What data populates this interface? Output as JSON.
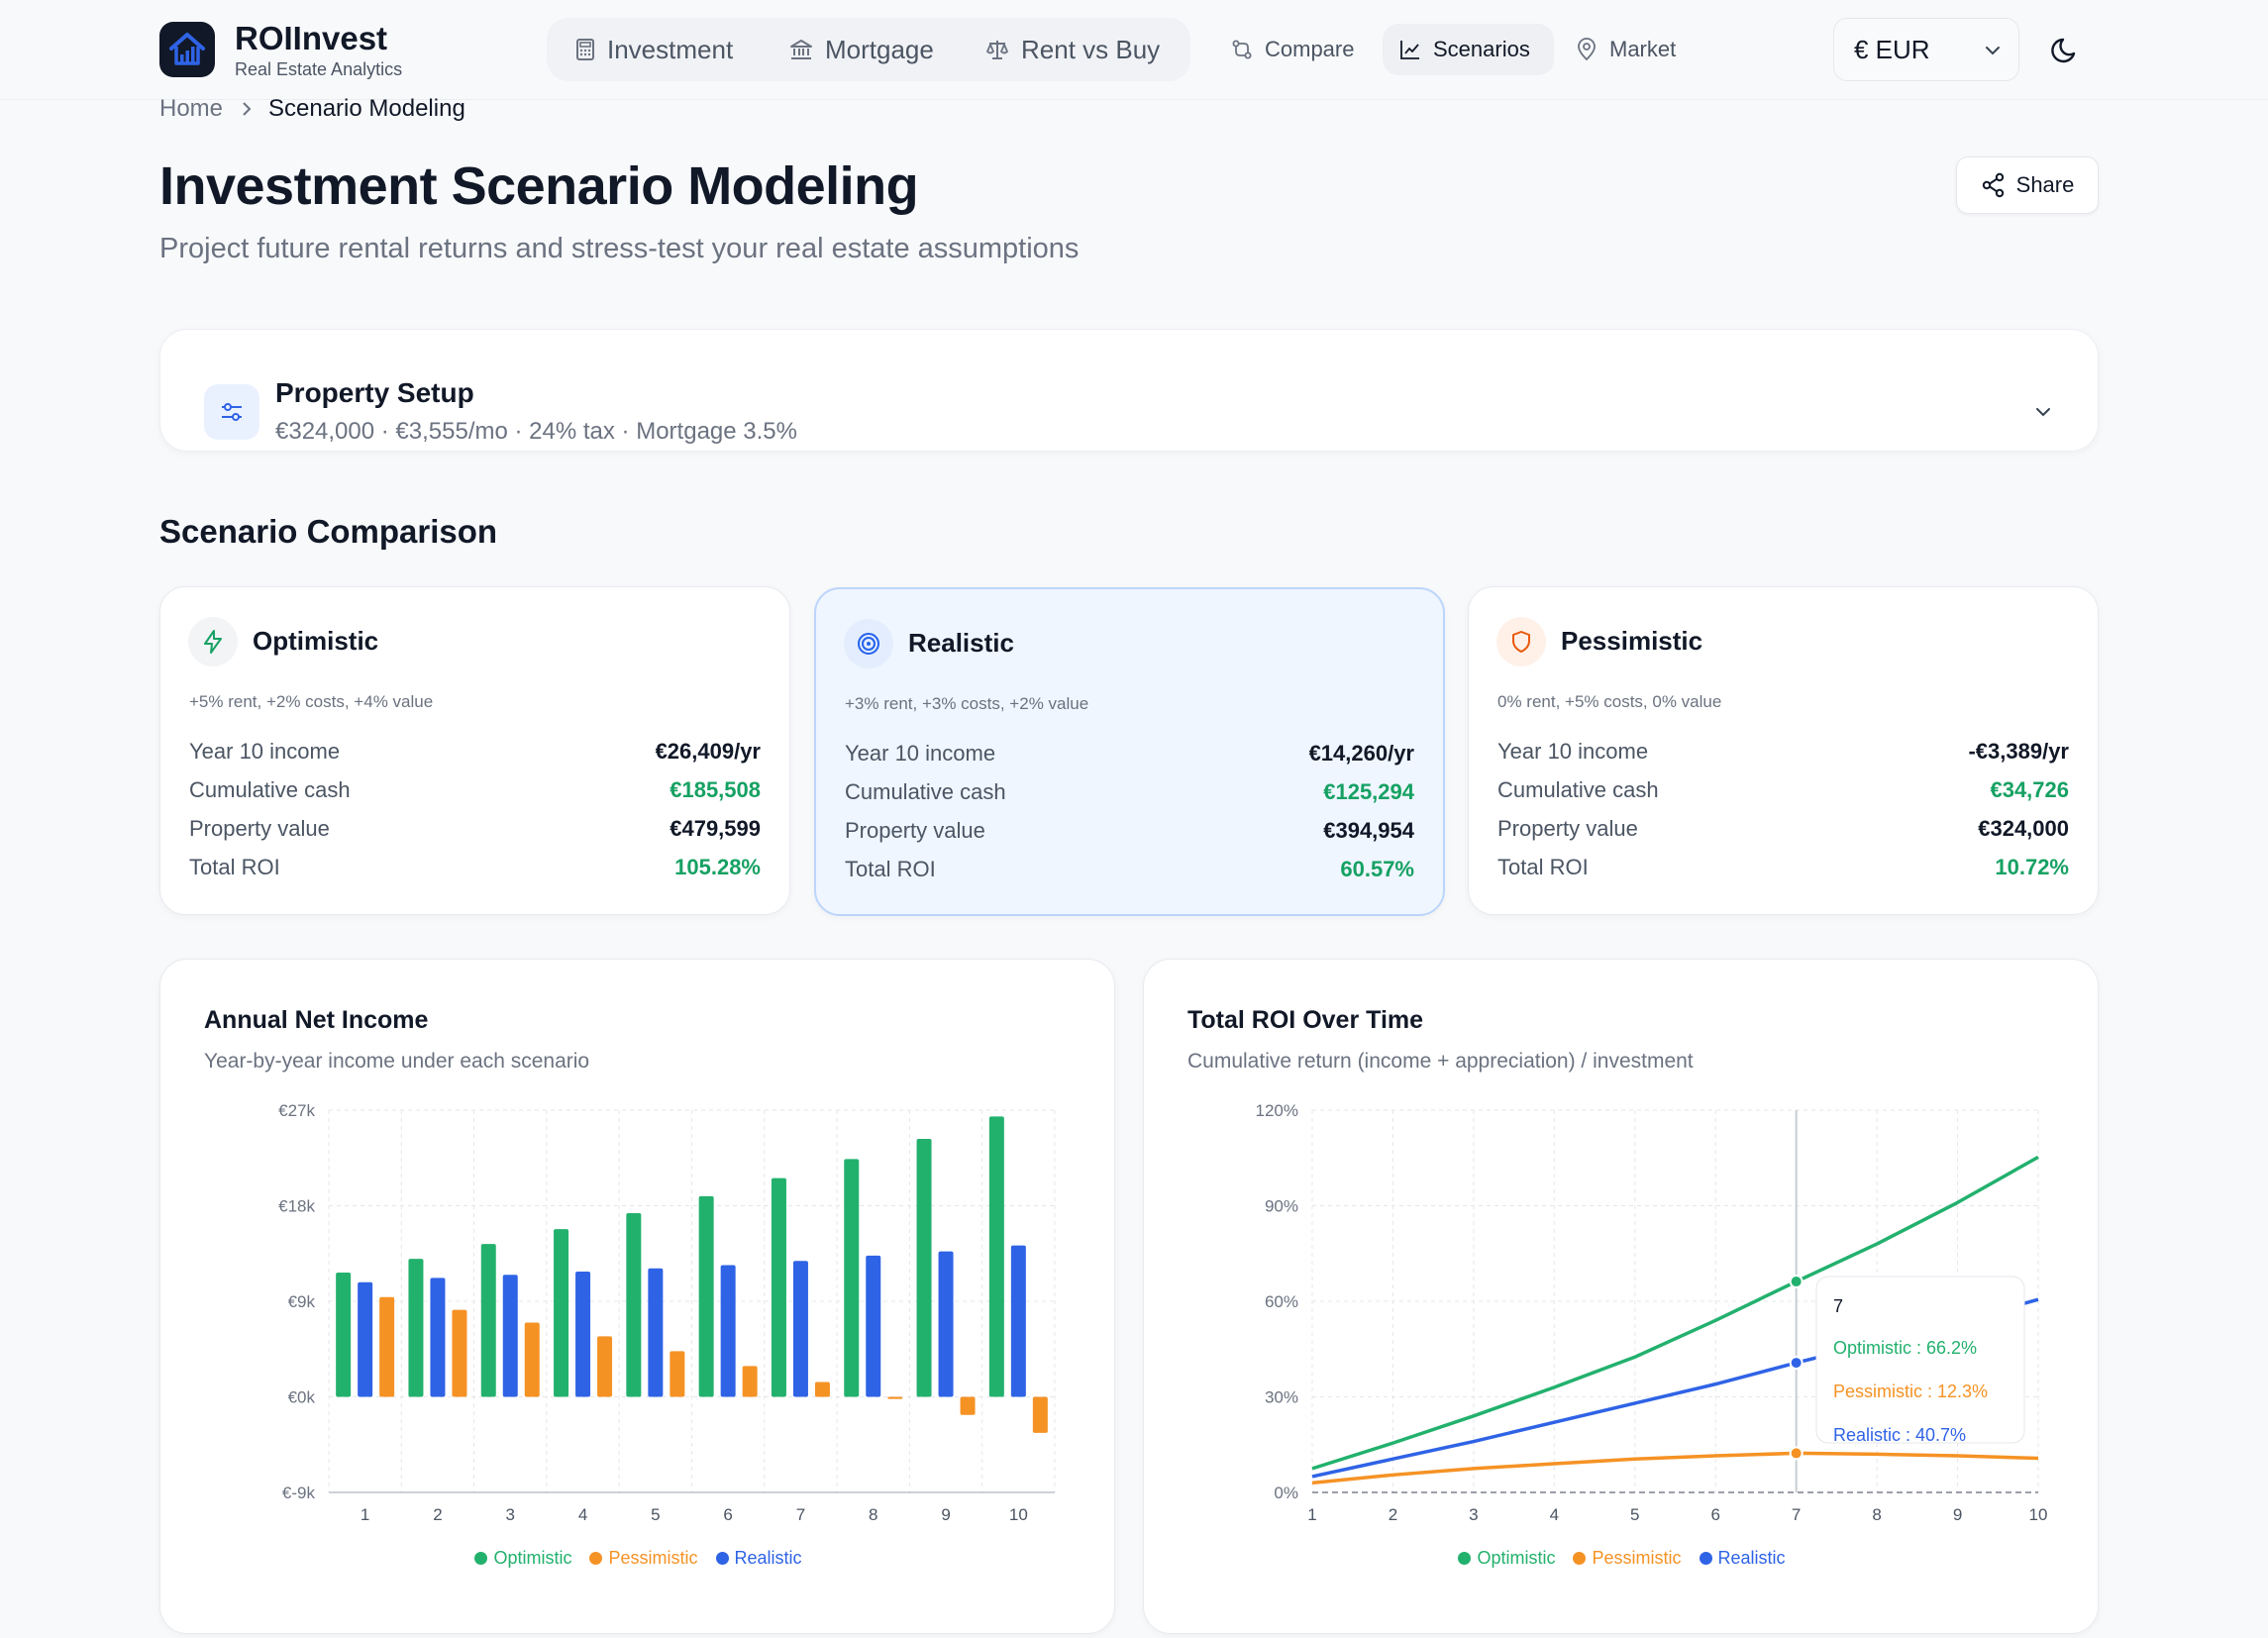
{
  "brand": {
    "name": "ROIInvest",
    "tagline": "Real Estate Analytics"
  },
  "nav": {
    "primary": [
      "Investment",
      "Mortgage",
      "Rent vs Buy"
    ],
    "secondary": [
      "Compare",
      "Scenarios",
      "Market"
    ],
    "active": "Scenarios"
  },
  "currency": {
    "selected": "€ EUR"
  },
  "breadcrumb": {
    "home": "Home",
    "current": "Scenario Modeling"
  },
  "page": {
    "title": "Investment Scenario Modeling",
    "subtitle": "Project future rental returns and stress-test your real estate assumptions",
    "share_label": "Share"
  },
  "setup": {
    "title": "Property Setup",
    "summary": "€324,000 · €3,555/mo · 24% tax · Mortgage 3.5%"
  },
  "comparison": {
    "title": "Scenario Comparison",
    "labels": {
      "income": "Year 10 income",
      "cash": "Cumulative cash",
      "value": "Property value",
      "roi": "Total ROI"
    },
    "scenarios": [
      {
        "name": "Optimistic",
        "desc": "+5% rent, +2% costs, +4% value",
        "income": "€26,409/yr",
        "cash": "€185,508",
        "value": "€479,599",
        "roi": "105.28%",
        "icon": "lightning-icon",
        "color": "#22a565"
      },
      {
        "name": "Realistic",
        "desc": "+3% rent, +3% costs, +2% value",
        "income": "€14,260/yr",
        "cash": "€125,294",
        "value": "€394,954",
        "roi": "60.57%",
        "icon": "target-icon",
        "color": "#2563eb"
      },
      {
        "name": "Pessimistic",
        "desc": "0% rent, +5% costs, 0% value",
        "income": "-€3,389/yr",
        "cash": "€34,726",
        "value": "€324,000",
        "roi": "10.72%",
        "icon": "shield-icon",
        "color": "#ea580c"
      }
    ]
  },
  "colors": {
    "optimistic": "#22b16d",
    "pessimistic": "#f59224",
    "realistic": "#2f63e6"
  },
  "chart_data": [
    {
      "type": "bar",
      "title": "Annual Net Income",
      "subtitle": "Year-by-year income under each scenario",
      "categories": [
        "1",
        "2",
        "3",
        "4",
        "5",
        "6",
        "7",
        "8",
        "9",
        "10"
      ],
      "yticks": [
        "€27k",
        "€18k",
        "€9k",
        "€0k",
        "€-9k"
      ],
      "ylim": [
        -9000,
        27000
      ],
      "series": [
        {
          "name": "Optimistic",
          "values": [
            11700,
            13000,
            14400,
            15800,
            17300,
            18900,
            20600,
            22400,
            24300,
            26400
          ]
        },
        {
          "name": "Realistic",
          "values": [
            10800,
            11200,
            11500,
            11800,
            12100,
            12400,
            12800,
            13300,
            13700,
            14260
          ]
        },
        {
          "name": "Pessimistic",
          "values": [
            9400,
            8200,
            7000,
            5700,
            4300,
            2900,
            1400,
            -200,
            -1700,
            -3389
          ]
        }
      ],
      "legend": "bottom",
      "grid": true
    },
    {
      "type": "line",
      "title": "Total ROI Over Time",
      "subtitle": "Cumulative return (income + appreciation) / investment",
      "x": [
        1,
        2,
        3,
        4,
        5,
        6,
        7,
        8,
        9,
        10
      ],
      "yticks": [
        "120%",
        "90%",
        "60%",
        "30%",
        "0%"
      ],
      "ylim": [
        0,
        120
      ],
      "series": [
        {
          "name": "Optimistic",
          "values": [
            7.5,
            15.5,
            24,
            33,
            42.5,
            54,
            66.2,
            78,
            91,
            105.28
          ]
        },
        {
          "name": "Realistic",
          "values": [
            5,
            10.5,
            16,
            22,
            28,
            34,
            40.7,
            47,
            53.5,
            60.57
          ]
        },
        {
          "name": "Pessimistic",
          "values": [
            3,
            5.5,
            7.5,
            9,
            10.5,
            11.5,
            12.3,
            12,
            11.5,
            10.72
          ]
        }
      ],
      "tooltip": {
        "x": "7",
        "lines": [
          "Optimistic : 66.2%",
          "Pessimistic : 12.3%",
          "Realistic : 40.7%"
        ]
      },
      "legend": "bottom",
      "grid": true
    }
  ]
}
